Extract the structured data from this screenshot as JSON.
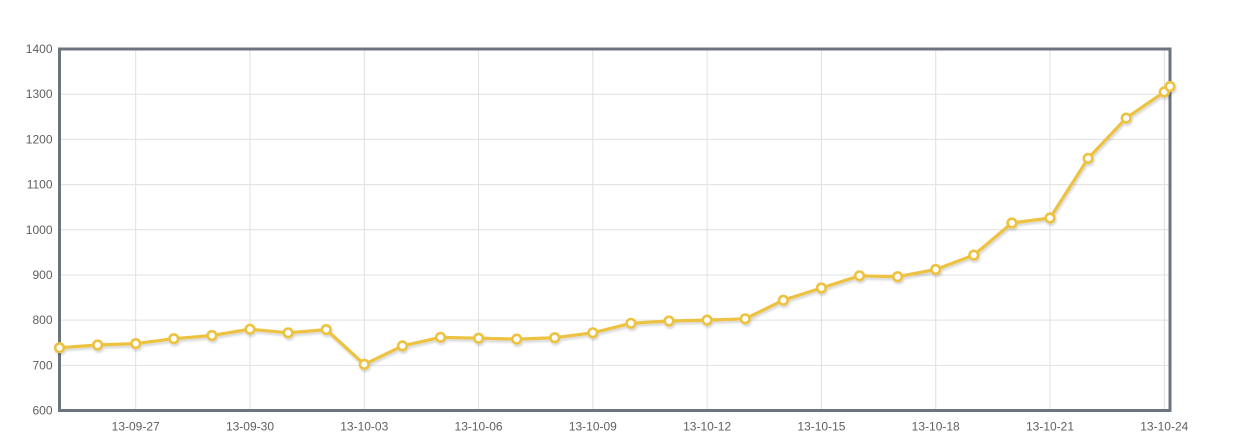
{
  "page": {
    "background": "#ffffff"
  },
  "style": {
    "line_color": "#edc240",
    "marker_fill": "#ffffff",
    "grid_color": "#e0e0e0",
    "border_color": "#6c757d",
    "label_color": "#5f5f5f"
  },
  "chart_data": {
    "type": "line",
    "title": "",
    "xlabel": "",
    "ylabel": "",
    "ylim": [
      600,
      1400
    ],
    "grid": true,
    "legend": "none",
    "y_ticks": [
      600,
      700,
      800,
      900,
      1000,
      1100,
      1200,
      1300,
      1400
    ],
    "x_ticks": [
      {
        "label": "13-09-27",
        "day": 2
      },
      {
        "label": "13-09-30",
        "day": 5
      },
      {
        "label": "13-10-03",
        "day": 8
      },
      {
        "label": "13-10-06",
        "day": 11
      },
      {
        "label": "13-10-09",
        "day": 14
      },
      {
        "label": "13-10-12",
        "day": 17
      },
      {
        "label": "13-10-15",
        "day": 20
      },
      {
        "label": "13-10-18",
        "day": 23
      },
      {
        "label": "13-10-21",
        "day": 26
      },
      {
        "label": "13-10-24",
        "day": 29
      }
    ],
    "series": [
      {
        "name": "value",
        "color": "#edc240",
        "marker": "hollow-circle",
        "points": [
          {
            "date": "13-09-25",
            "day": 0,
            "value": 739
          },
          {
            "date": "13-09-26",
            "day": 1,
            "value": 745
          },
          {
            "date": "13-09-27",
            "day": 2,
            "value": 748
          },
          {
            "date": "13-09-28",
            "day": 3,
            "value": 759
          },
          {
            "date": "13-09-29",
            "day": 4,
            "value": 766
          },
          {
            "date": "13-09-30",
            "day": 5,
            "value": 780
          },
          {
            "date": "13-10-01",
            "day": 6,
            "value": 772
          },
          {
            "date": "13-10-02",
            "day": 7,
            "value": 779
          },
          {
            "date": "13-10-03",
            "day": 8,
            "value": 702
          },
          {
            "date": "13-10-04",
            "day": 9,
            "value": 743
          },
          {
            "date": "13-10-05",
            "day": 10,
            "value": 762
          },
          {
            "date": "13-10-06",
            "day": 11,
            "value": 760
          },
          {
            "date": "13-10-07",
            "day": 12,
            "value": 758
          },
          {
            "date": "13-10-08",
            "day": 13,
            "value": 761
          },
          {
            "date": "13-10-09",
            "day": 14,
            "value": 772
          },
          {
            "date": "13-10-10",
            "day": 15,
            "value": 793
          },
          {
            "date": "13-10-11",
            "day": 16,
            "value": 798
          },
          {
            "date": "13-10-12",
            "day": 17,
            "value": 800
          },
          {
            "date": "13-10-13",
            "day": 18,
            "value": 803
          },
          {
            "date": "13-10-14",
            "day": 19,
            "value": 844
          },
          {
            "date": "13-10-15",
            "day": 20,
            "value": 871
          },
          {
            "date": "13-10-16",
            "day": 21,
            "value": 898
          },
          {
            "date": "13-10-17",
            "day": 22,
            "value": 896
          },
          {
            "date": "13-10-18",
            "day": 23,
            "value": 912
          },
          {
            "date": "13-10-19",
            "day": 24,
            "value": 944
          },
          {
            "date": "13-10-20",
            "day": 25,
            "value": 1015
          },
          {
            "date": "13-10-21",
            "day": 26,
            "value": 1026
          },
          {
            "date": "13-10-22",
            "day": 27,
            "value": 1158
          },
          {
            "date": "13-10-23",
            "day": 28,
            "value": 1247
          },
          {
            "date": "13-10-24",
            "day": 29,
            "value": 1305
          },
          {
            "date": "13-10-24",
            "day": 29.15,
            "value": 1317
          }
        ]
      }
    ]
  }
}
